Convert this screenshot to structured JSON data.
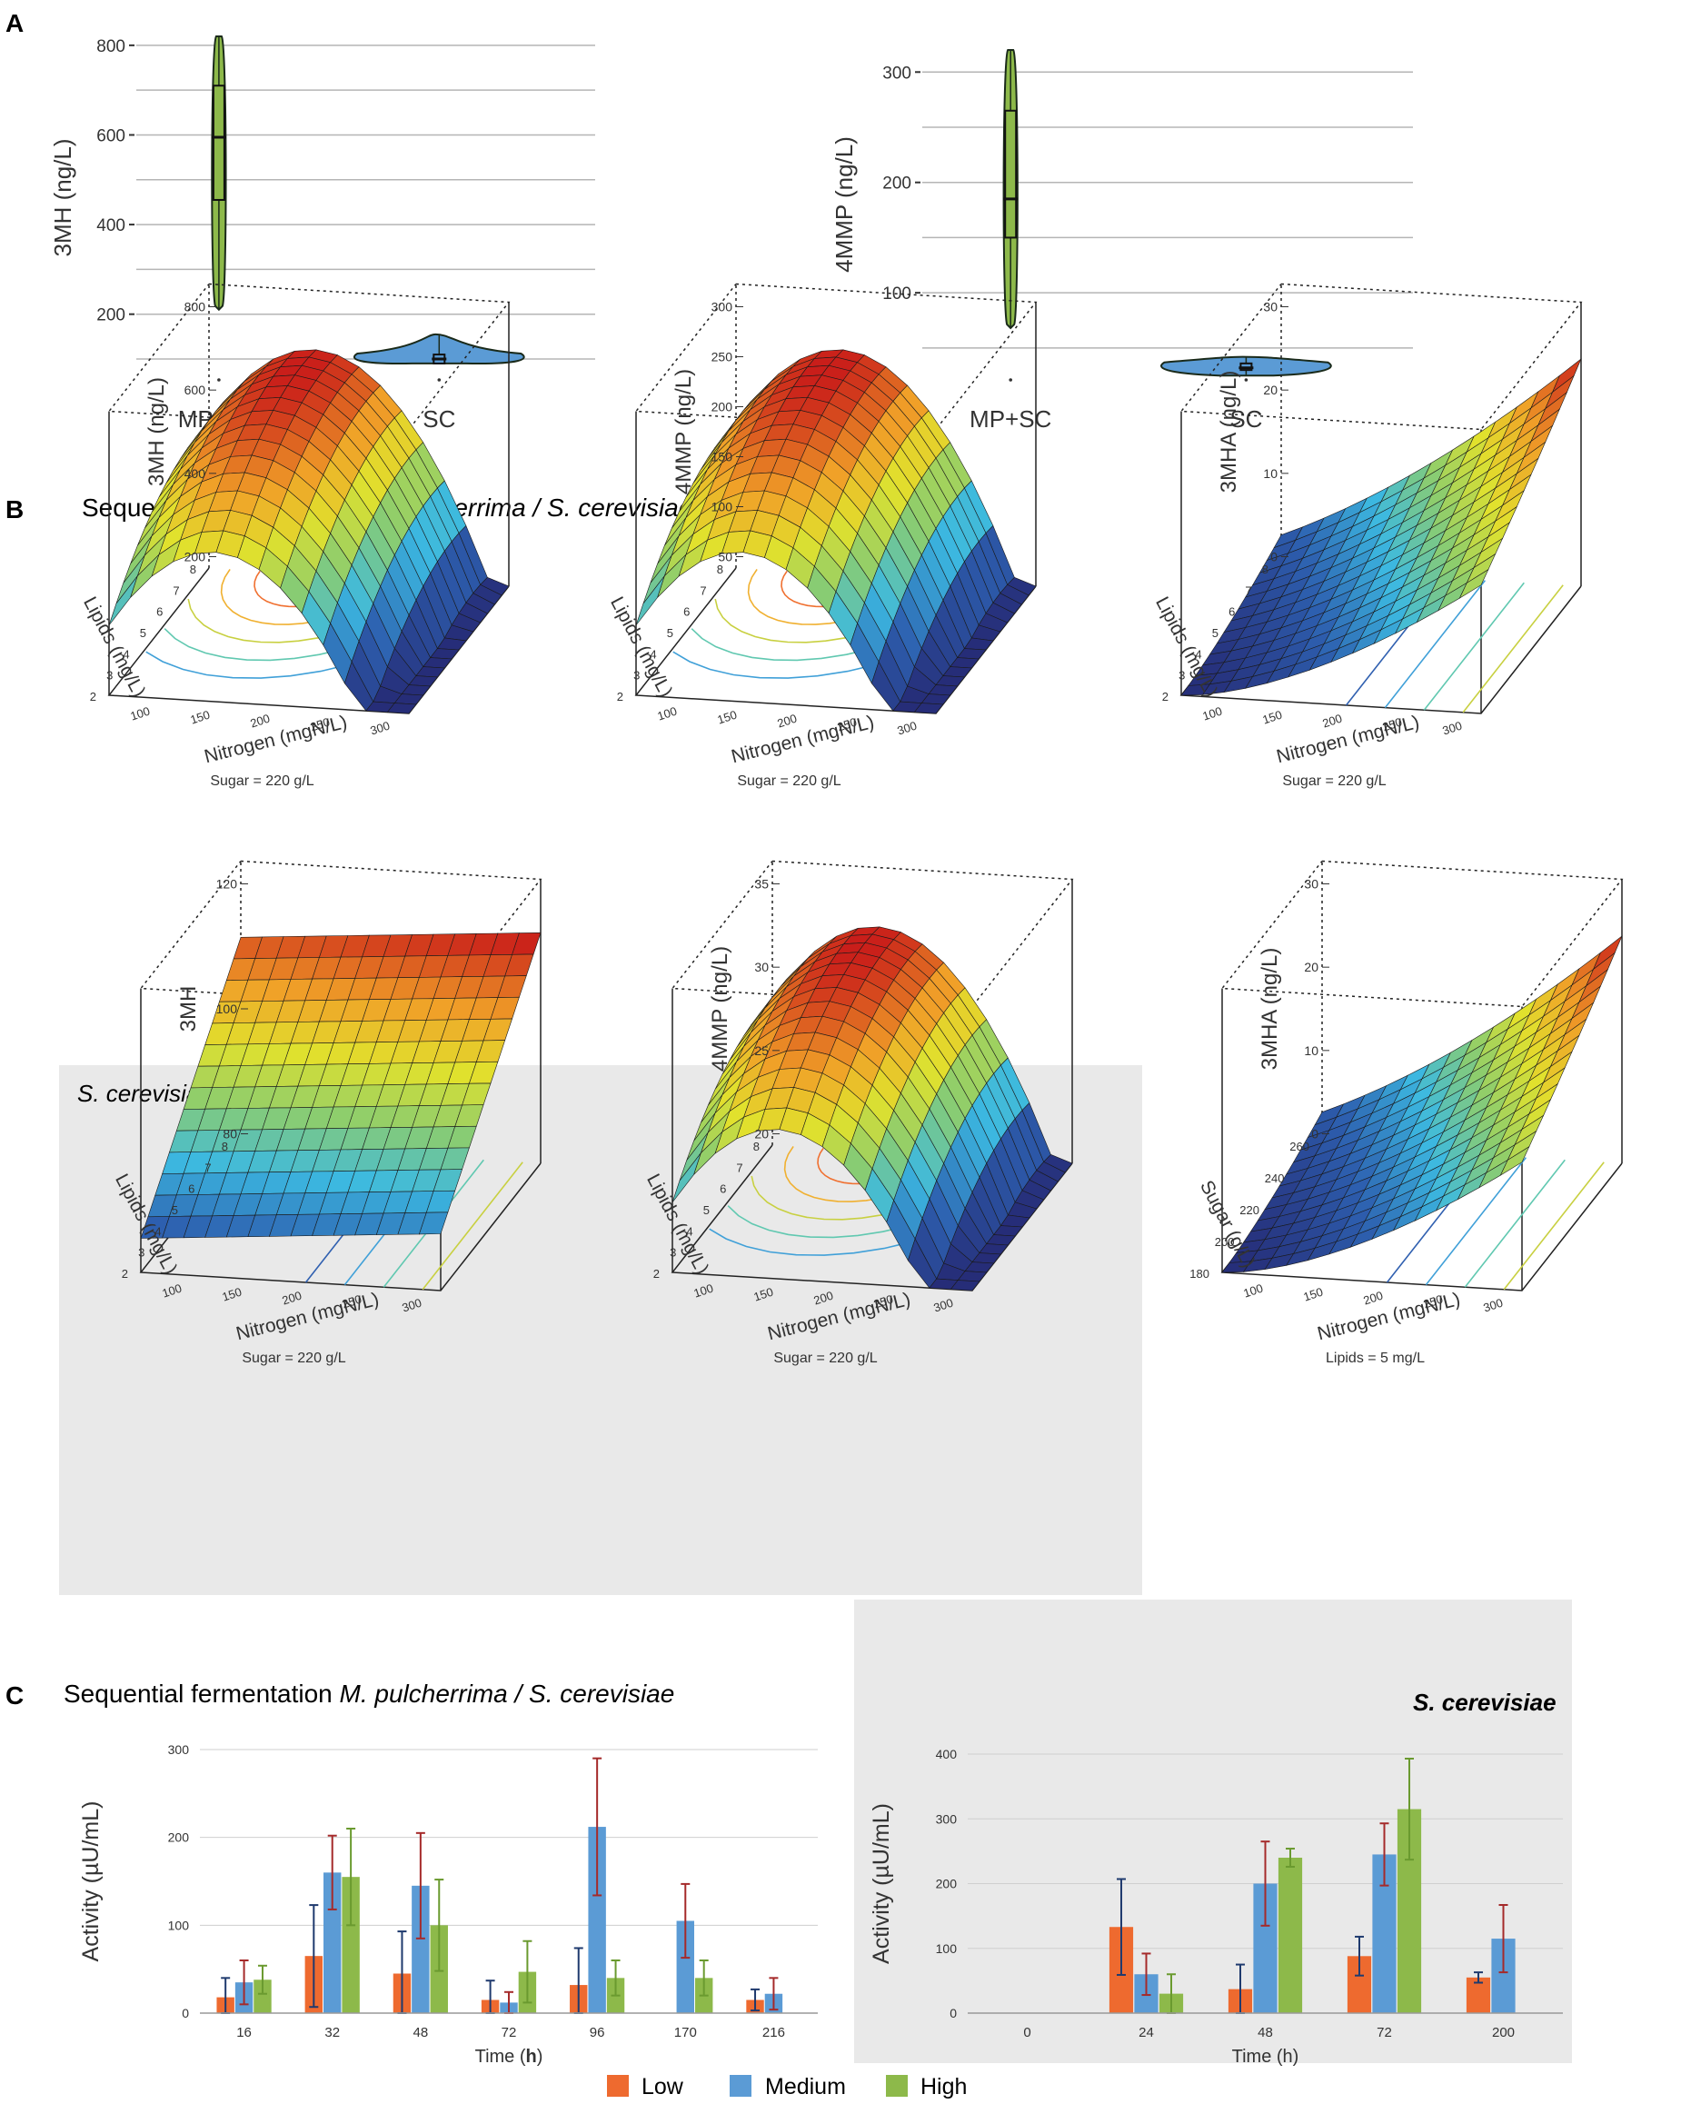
{
  "panel_labels": {
    "a": "A",
    "b": "B",
    "c": "C"
  },
  "chart_data": [
    {
      "type": "violin",
      "panel": "A",
      "ylabel": "3MH (ng/L)",
      "categories": [
        "MP+SC",
        "SC"
      ],
      "yticks": [
        200,
        400,
        600,
        800
      ],
      "ylim": [
        100,
        820
      ],
      "gridlines": [
        100,
        200,
        300,
        400,
        500,
        600,
        700,
        800
      ],
      "groups": [
        {
          "name": "MP+SC",
          "min": 210,
          "q1": 455,
          "median": 595,
          "q3": 710,
          "max": 820,
          "color": "#8db94a"
        },
        {
          "name": "SC",
          "min": 90,
          "q1": 90,
          "median": 100,
          "q3": 110,
          "max": 155,
          "color": "#5b9bd5"
        }
      ]
    },
    {
      "type": "violin",
      "panel": "A",
      "ylabel": "4MMP (ng/L)",
      "categories": [
        "MP+SC",
        "SC"
      ],
      "yticks": [
        100,
        200,
        300
      ],
      "ylim": [
        40,
        320
      ],
      "gridlines": [
        50,
        100,
        150,
        200,
        250,
        300
      ],
      "groups": [
        {
          "name": "MP+SC",
          "min": 68,
          "q1": 150,
          "median": 185,
          "q3": 265,
          "max": 320,
          "color": "#8db94a"
        },
        {
          "name": "SC",
          "min": 25,
          "q1": 30,
          "median": 32,
          "q3": 36,
          "max": 42,
          "color": "#5b9bd5"
        }
      ]
    },
    {
      "type": "surface3d",
      "panel": "B",
      "group": "Sequential fermentation",
      "zlabel": "3MH (ng/L)",
      "zticks": [
        "200",
        "400",
        "600",
        "800"
      ],
      "xlabel": "Nitrogen (mgN/L)",
      "xticks": [
        "100",
        "150",
        "200",
        "250",
        "300"
      ],
      "ylabel": "Lipids (mg/L)",
      "yticks": [
        "2",
        "3",
        "4",
        "5",
        "6",
        "7",
        "8"
      ],
      "fixed": "Sugar = 220 g/L",
      "shape": "dome"
    },
    {
      "type": "surface3d",
      "panel": "B",
      "group": "Sequential fermentation",
      "zlabel": "4MMP (ng/L)",
      "zticks": [
        "50",
        "100",
        "150",
        "200",
        "250",
        "300"
      ],
      "xlabel": "Nitrogen (mgN/L)",
      "xticks": [
        "100",
        "150",
        "200",
        "250",
        "300"
      ],
      "ylabel": "Lipids (mg/L)",
      "yticks": [
        "2",
        "3",
        "4",
        "5",
        "6",
        "7",
        "8"
      ],
      "fixed": "Sugar = 220 g/L",
      "shape": "dome"
    },
    {
      "type": "surface3d",
      "panel": "B",
      "group": "Sequential fermentation",
      "zlabel": "3MHA (ng/L)",
      "zticks": [
        "0",
        "10",
        "20",
        "30"
      ],
      "xlabel": "Nitrogen (mgN/L)",
      "xticks": [
        "100",
        "150",
        "200",
        "250",
        "300"
      ],
      "ylabel": "Lipids (mg/L)",
      "yticks": [
        "2",
        "3",
        "4",
        "5",
        "6",
        "7",
        "8"
      ],
      "fixed": "Sugar = 220 g/L",
      "shape": "ramp"
    },
    {
      "type": "surface3d",
      "panel": "B",
      "group": "S. cerevisiae",
      "zlabel": "3MH",
      "zticks": [
        "80",
        "100",
        "120"
      ],
      "xlabel": "Nitrogen (mgN/L)",
      "xticks": [
        "100",
        "150",
        "200",
        "250",
        "300"
      ],
      "ylabel": "Lipids (mg/L)",
      "yticks": [
        "2",
        "3",
        "4",
        "5",
        "6",
        "7",
        "8"
      ],
      "fixed": "Sugar = 220 g/L",
      "shape": "plane"
    },
    {
      "type": "surface3d",
      "panel": "B",
      "group": "S. cerevisiae",
      "zlabel": "4MMP (ng/L)",
      "zticks": [
        "20",
        "25",
        "30",
        "35"
      ],
      "xlabel": "Nitrogen (mgN/L)",
      "xticks": [
        "100",
        "150",
        "200",
        "250",
        "300"
      ],
      "ylabel": "Lipids (mg/L)",
      "yticks": [
        "2",
        "3",
        "4",
        "5",
        "6",
        "7",
        "8"
      ],
      "fixed": "Sugar = 220 g/L",
      "shape": "dome"
    },
    {
      "type": "surface3d",
      "panel": "B",
      "group": "S. cerevisiae",
      "zlabel": "3MHA (ng/L)",
      "zticks": [
        "0",
        "10",
        "20",
        "30"
      ],
      "xlabel": "Nitrogen (mgN/L)",
      "xticks": [
        "100",
        "150",
        "200",
        "250",
        "300"
      ],
      "ylabel": "Sugar (g/L)",
      "yticks": [
        "180",
        "200",
        "220",
        "240",
        "260"
      ],
      "fixed": "Lipids = 5 mg/L",
      "shape": "ramp"
    },
    {
      "type": "bar",
      "panel": "C",
      "ylabel": "Activity (µU/mL)",
      "xlabel_prefix": "Time (",
      "xlabel_unit": "h",
      "xlabel_suffix": ")",
      "categories": [
        "16",
        "32",
        "48",
        "72",
        "96",
        "170",
        "216"
      ],
      "ylim": [
        0,
        300
      ],
      "yticks": [
        0,
        100,
        200,
        300
      ],
      "series": [
        {
          "name": "Low",
          "color": "#ee6a2f",
          "errcolor": "#1f3a6e",
          "values": [
            18,
            65,
            45,
            15,
            32,
            0,
            15
          ],
          "errors": [
            22,
            58,
            48,
            22,
            42,
            0,
            12
          ]
        },
        {
          "name": "Medium",
          "color": "#5b9bd5",
          "errcolor": "#a52a2a",
          "values": [
            35,
            160,
            145,
            12,
            212,
            105,
            22
          ],
          "errors": [
            25,
            42,
            60,
            12,
            78,
            42,
            18
          ]
        },
        {
          "name": "High",
          "color": "#8db94a",
          "errcolor": "#6a9a2f",
          "values": [
            38,
            155,
            100,
            47,
            40,
            40,
            0
          ],
          "errors": [
            16,
            55,
            52,
            35,
            20,
            20,
            0
          ]
        }
      ]
    },
    {
      "type": "bar",
      "panel": "C",
      "ylabel": "Activity (µU/mL)",
      "xlabel_prefix": "Time (h)",
      "xlabel_unit": "",
      "xlabel_suffix": "",
      "categories": [
        "0",
        "24",
        "48",
        "72",
        "200"
      ],
      "ylim": [
        0,
        400
      ],
      "yticks": [
        0,
        100,
        200,
        300,
        400
      ],
      "series": [
        {
          "name": "Low",
          "color": "#ee6a2f",
          "errcolor": "#1f3a6e",
          "values": [
            0,
            133,
            37,
            88,
            55
          ],
          "errors": [
            0,
            74,
            38,
            30,
            8
          ]
        },
        {
          "name": "Medium",
          "color": "#5b9bd5",
          "errcolor": "#a52a2a",
          "values": [
            0,
            60,
            200,
            245,
            115
          ],
          "errors": [
            0,
            32,
            65,
            48,
            52
          ]
        },
        {
          "name": "High",
          "color": "#8db94a",
          "errcolor": "#6a9a2f",
          "values": [
            0,
            30,
            240,
            315,
            0
          ],
          "errors": [
            0,
            30,
            14,
            78,
            0
          ]
        }
      ]
    }
  ],
  "panelB": {
    "title_prefix": "Sequential fermentation ",
    "title_italic": "M. pulcherrima / S. cerevisiae",
    "sc_label": "S. cerevisiae"
  },
  "panelC": {
    "title_prefix": "Sequential fermentation ",
    "title_italic": "M. pulcherrima / S. cerevisiae",
    "sc_label": "S. cerevisiae"
  },
  "legend": {
    "low": "Low",
    "medium": "Medium",
    "high": "High"
  }
}
